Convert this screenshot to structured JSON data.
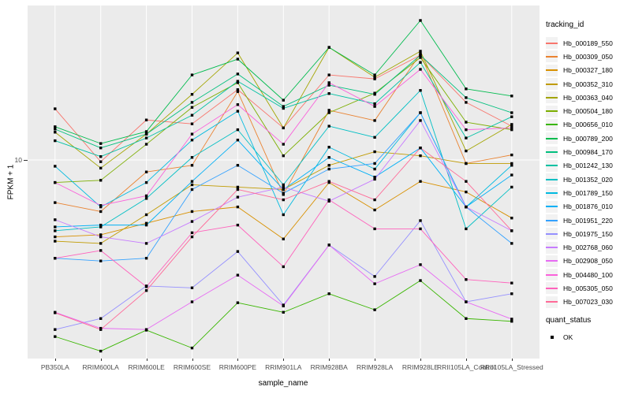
{
  "figure": {
    "background": "#FFFFFF",
    "panel_background": "#EBEBEB",
    "grid_color": "#FFFFFF",
    "marker_color": "#000000",
    "axis_text_color": "#4D4D4D"
  },
  "axes": {
    "x_title": "sample_name",
    "y_title": "FPKM + 1",
    "y_tick_label": "10"
  },
  "legend": {
    "tracking_title": "tracking_id",
    "quant_title": "quant_status",
    "quant_items": [
      {
        "label": "OK",
        "marker": "black-square"
      }
    ]
  },
  "chart_data": {
    "type": "line",
    "title": "",
    "xlabel": "sample_name",
    "ylabel": "FPKM + 1",
    "y_scale": "log10",
    "ylim": [
      1,
      60
    ],
    "y_ticks": [
      10
    ],
    "grid": "major",
    "legend_position": "right",
    "marker": "black-square",
    "quant_status": "OK",
    "x_categories": [
      "PB350LA",
      "RRIM600LA",
      "RRIM600LE",
      "RRIM600SE",
      "RRIM600PE",
      "RRIM901LA",
      "RRIM928BA",
      "RRIM928LA",
      "RRIM928LE",
      "RRII105LA_Control",
      "RRII105LA_Stressed"
    ],
    "series": [
      {
        "name": "Hb_000189_550",
        "color": "#F8766D",
        "values": [
          18.1,
          9.8,
          15.9,
          15.2,
          22.6,
          14.5,
          26.8,
          25.6,
          33.7,
          19.5,
          14.8
        ]
      },
      {
        "name": "Hb_000309_050",
        "color": "#EA8331",
        "values": [
          6.1,
          5.5,
          8.7,
          9.4,
          22.1,
          6.7,
          17.8,
          15.8,
          34.3,
          9.6,
          10.6
        ]
      },
      {
        "name": "Hb_000327_180",
        "color": "#D89000",
        "values": [
          4.1,
          4.2,
          4.8,
          5.5,
          5.8,
          4.0,
          7.7,
          5.6,
          7.8,
          6.9,
          5.1
        ]
      },
      {
        "name": "Hb_000352_310",
        "color": "#C09B00",
        "values": [
          3.9,
          3.8,
          5.3,
          7.5,
          7.3,
          7.1,
          9.4,
          11.0,
          10.5,
          9.6,
          9.6
        ]
      },
      {
        "name": "Hb_000363_040",
        "color": "#A3A500",
        "values": [
          13.8,
          9.1,
          13.5,
          21.4,
          34.6,
          14.5,
          36.9,
          26.1,
          35.3,
          11.1,
          15.1
        ]
      },
      {
        "name": "Hb_000504_180",
        "color": "#7CAE00",
        "values": [
          7.7,
          7.9,
          12.0,
          18.4,
          24.5,
          10.5,
          17.3,
          21.7,
          32.8,
          15.5,
          14.2
        ]
      },
      {
        "name": "Hb_000656_010",
        "color": "#39B600",
        "values": [
          1.29,
          1.09,
          1.39,
          1.13,
          1.91,
          1.71,
          2.12,
          1.76,
          2.47,
          1.59,
          1.54
        ]
      },
      {
        "name": "Hb_000789_200",
        "color": "#00BB4E",
        "values": [
          14.7,
          12.1,
          13.9,
          26.8,
          32.2,
          20.0,
          36.9,
          26.8,
          50.4,
          22.8,
          21.0
        ]
      },
      {
        "name": "Hb_000984_170",
        "color": "#00BF7D",
        "values": [
          14.3,
          11.5,
          13.5,
          19.5,
          27.1,
          18.6,
          23.8,
          21.4,
          33.7,
          20.6,
          17.3
        ]
      },
      {
        "name": "Hb_001242_130",
        "color": "#00C1A3",
        "values": [
          12.5,
          10.4,
          12.9,
          16.8,
          24.9,
          18.2,
          21.6,
          19.2,
          31.0,
          12.9,
          16.5
        ]
      },
      {
        "name": "Hb_001352_020",
        "color": "#00BFC4",
        "values": [
          4.4,
          4.6,
          6.4,
          10.3,
          14.2,
          7.5,
          14.8,
          13.0,
          22.4,
          4.5,
          7.3
        ]
      },
      {
        "name": "Hb_001789_150",
        "color": "#00BAE0",
        "values": [
          9.3,
          5.8,
          7.7,
          12.6,
          17.6,
          5.3,
          11.6,
          9.0,
          17.3,
          5.8,
          9.4
        ]
      },
      {
        "name": "Hb_001876_010",
        "color": "#00B0F6",
        "values": [
          4.6,
          4.7,
          4.7,
          7.8,
          12.6,
          7.1,
          10.3,
          8.2,
          11.5,
          5.8,
          8.4
        ]
      },
      {
        "name": "Hb_001951_220",
        "color": "#35A2FF",
        "values": [
          3.2,
          3.1,
          3.2,
          7.1,
          9.4,
          6.8,
          9.0,
          9.6,
          17.3,
          5.8,
          3.8
        ]
      },
      {
        "name": "Hb_001975_150",
        "color": "#9590FF",
        "values": [
          1.4,
          1.59,
          2.32,
          2.27,
          3.46,
          1.86,
          3.73,
          2.59,
          4.95,
          1.93,
          2.12
        ]
      },
      {
        "name": "Hb_002768_060",
        "color": "#C77CFF",
        "values": [
          5.0,
          4.1,
          3.8,
          4.9,
          6.5,
          7.3,
          6.2,
          8.0,
          15.8,
          5.8,
          4.4
        ]
      },
      {
        "name": "Hb_002908_050",
        "color": "#E76BF3",
        "values": [
          1.71,
          1.42,
          1.4,
          1.93,
          2.63,
          1.84,
          3.73,
          2.38,
          2.97,
          1.93,
          1.58
        ]
      },
      {
        "name": "Hb_004480_100",
        "color": "#FA62DB",
        "values": [
          7.7,
          5.9,
          6.6,
          13.5,
          19.0,
          12.0,
          24.5,
          18.6,
          28.6,
          14.2,
          14.5
        ]
      },
      {
        "name": "Hb_005305_050",
        "color": "#FF62BC",
        "values": [
          3.2,
          3.5,
          2.3,
          4.3,
          4.7,
          2.9,
          6.3,
          4.5,
          4.5,
          2.5,
          2.4
        ]
      },
      {
        "name": "Hb_007023_030",
        "color": "#FF6A98",
        "values": [
          1.7,
          1.4,
          2.2,
          4.1,
          7.1,
          6.3,
          7.8,
          6.3,
          11.5,
          7.8,
          4.4
        ]
      }
    ]
  }
}
